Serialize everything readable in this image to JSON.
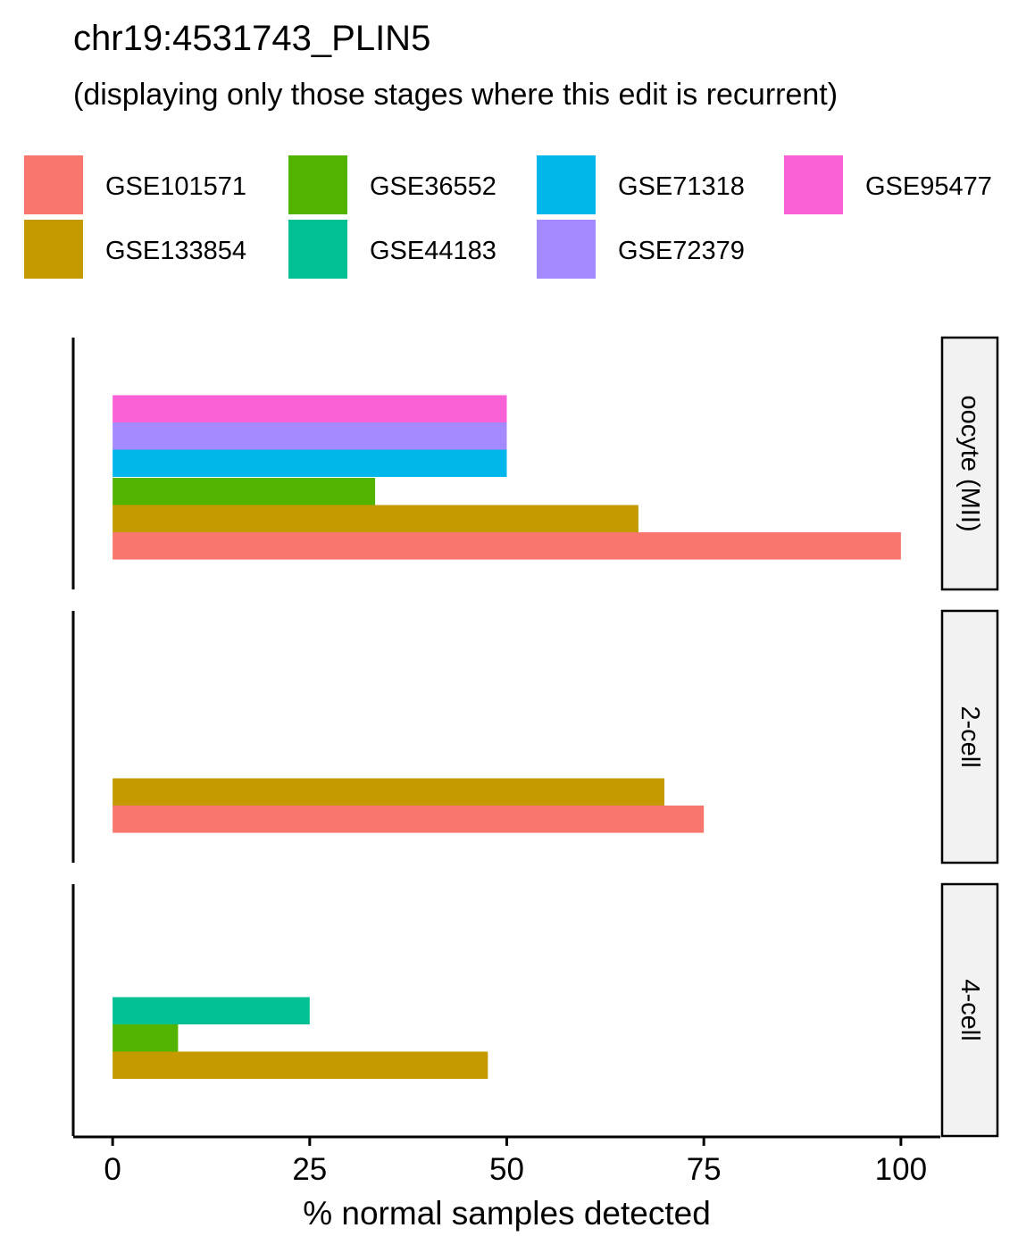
{
  "title": "chr19:4531743_PLIN5",
  "subtitle": "(displaying only those stages where this edit is recurrent)",
  "chart_data": {
    "type": "bar",
    "orientation": "horizontal",
    "xlabel": "% normal samples detected",
    "ylabel": "",
    "xlim": [
      -5,
      105
    ],
    "xticks": [
      0,
      25,
      50,
      75,
      100
    ],
    "grid": false,
    "legend_position": "top",
    "legend": [
      {
        "name": "GSE101571",
        "color": "#F8766D"
      },
      {
        "name": "GSE133854",
        "color": "#C49A00"
      },
      {
        "name": "GSE36552",
        "color": "#53B400"
      },
      {
        "name": "GSE44183",
        "color": "#00C094"
      },
      {
        "name": "GSE71318",
        "color": "#00B6EB"
      },
      {
        "name": "GSE72379",
        "color": "#A58AFF"
      },
      {
        "name": "GSE95477",
        "color": "#FB61D7"
      }
    ],
    "panels": [
      {
        "label": "oocyte (MII)",
        "bars": [
          {
            "series": "GSE101571",
            "value": 100
          },
          {
            "series": "GSE133854",
            "value": 66.7
          },
          {
            "series": "GSE36552",
            "value": 33.3
          },
          {
            "series": "GSE71318",
            "value": 50
          },
          {
            "series": "GSE72379",
            "value": 50
          },
          {
            "series": "GSE95477",
            "value": 50
          }
        ]
      },
      {
        "label": "2-cell",
        "bars": [
          {
            "series": "GSE101571",
            "value": 75
          },
          {
            "series": "GSE133854",
            "value": 70
          }
        ]
      },
      {
        "label": "4-cell",
        "bars": [
          {
            "series": "GSE133854",
            "value": 47.6
          },
          {
            "series": "GSE36552",
            "value": 8.3
          },
          {
            "series": "GSE44183",
            "value": 25
          }
        ]
      }
    ]
  }
}
